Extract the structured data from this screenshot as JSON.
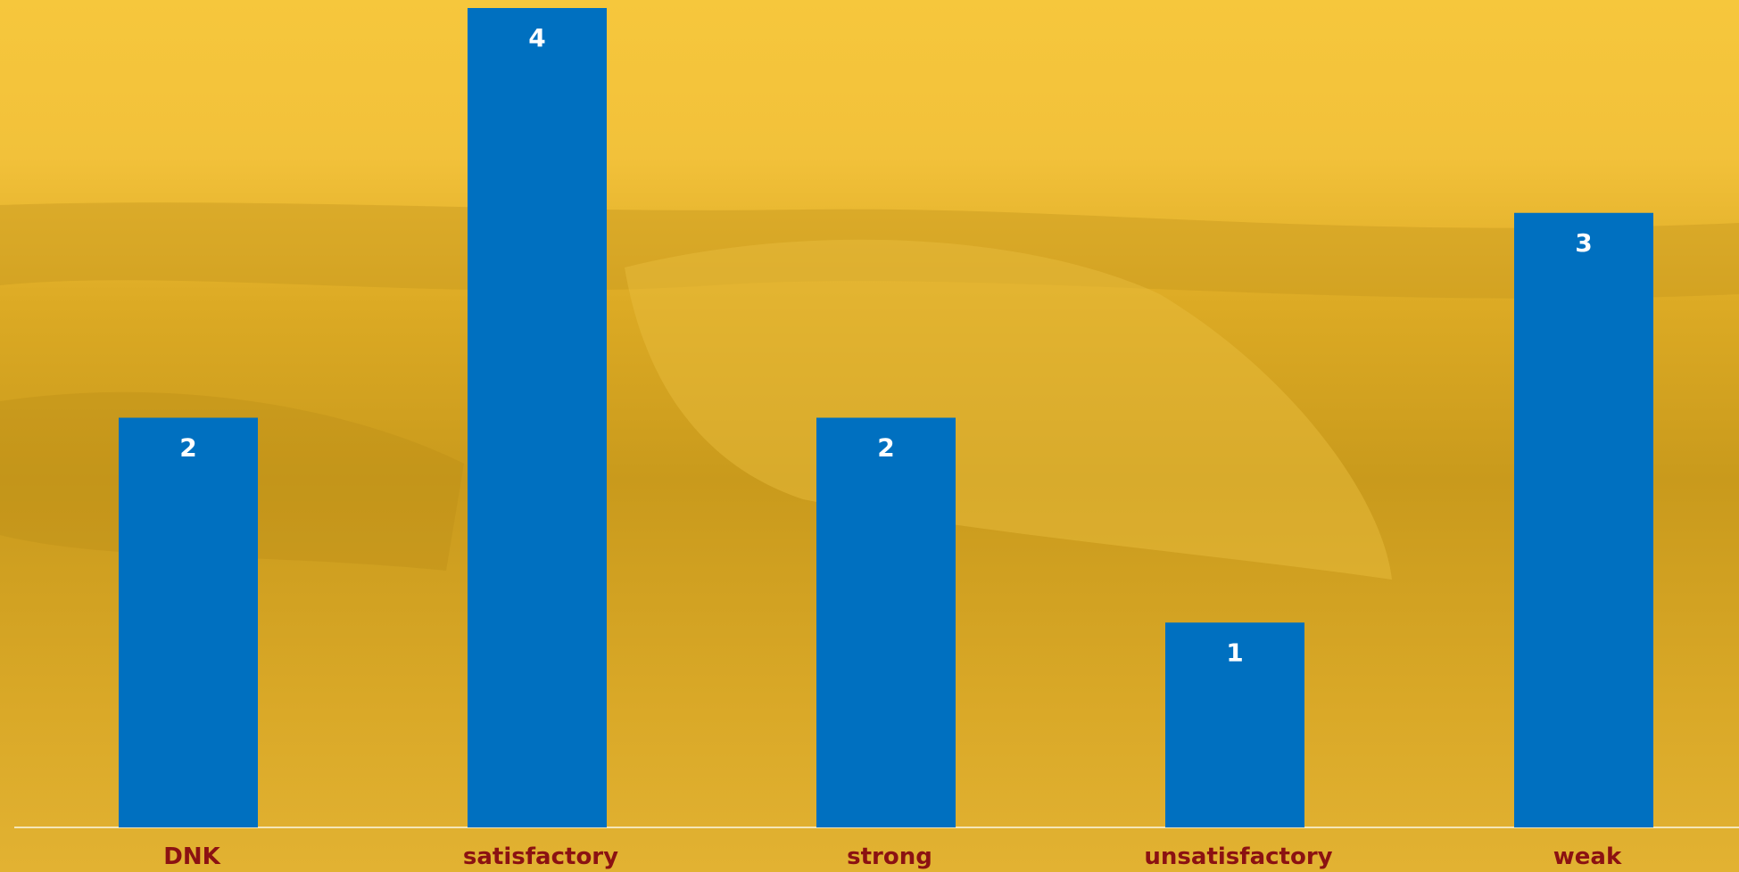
{
  "chart_data": {
    "type": "bar",
    "categories": [
      "DNK",
      "satisfactory",
      "strong",
      "unsatisfactory",
      "weak"
    ],
    "values": [
      2,
      4,
      2,
      1,
      3
    ],
    "color": "#0070c0"
  }
}
